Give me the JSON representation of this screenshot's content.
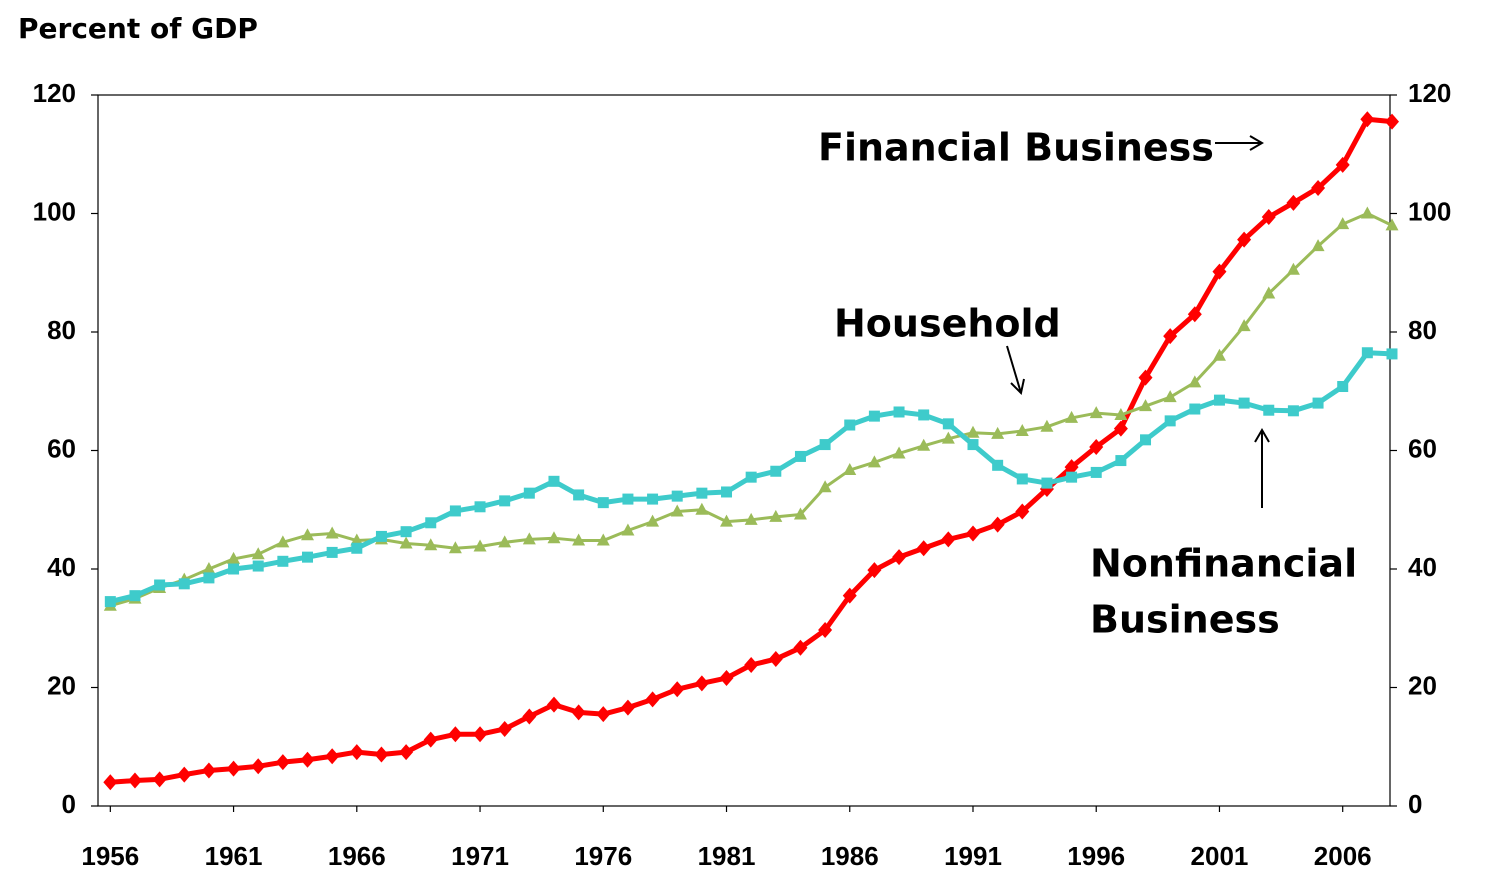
{
  "chart_data": {
    "type": "line",
    "y_axis_label": "Percent of GDP",
    "x": [
      1956,
      1957,
      1958,
      1959,
      1960,
      1961,
      1962,
      1963,
      1964,
      1965,
      1966,
      1967,
      1968,
      1969,
      1970,
      1971,
      1972,
      1973,
      1974,
      1975,
      1976,
      1977,
      1978,
      1979,
      1980,
      1981,
      1982,
      1983,
      1984,
      1985,
      1986,
      1987,
      1988,
      1989,
      1990,
      1991,
      1992,
      1993,
      1994,
      1995,
      1996,
      1997,
      1998,
      1999,
      2000,
      2001,
      2002,
      2003,
      2004,
      2005,
      2006,
      2007,
      2008
    ],
    "xlim": [
      1955.5,
      2008
    ],
    "xticks": [
      1956,
      1961,
      1966,
      1971,
      1976,
      1981,
      1986,
      1991,
      1996,
      2001,
      2006
    ],
    "ylim": [
      0,
      120
    ],
    "yticks": [
      0,
      20,
      40,
      60,
      80,
      100,
      120
    ],
    "y2lim": [
      0,
      120
    ],
    "y2ticks": [
      0,
      20,
      40,
      60,
      80,
      100,
      120
    ],
    "series": [
      {
        "color": "#ff0000",
        "marker": "diamond",
        "values": [
          4,
          4.3,
          4.5,
          5.3,
          6,
          6.3,
          6.7,
          7.4,
          7.8,
          8.4,
          9.1,
          8.7,
          9.1,
          11.2,
          12.1,
          12.1,
          13,
          15.1,
          17.1,
          15.8,
          15.5,
          16.6,
          18,
          19.7,
          20.7,
          21.6,
          23.8,
          24.8,
          26.7,
          29.7,
          35.5,
          39.8,
          42,
          43.5,
          45,
          46,
          47.5,
          49.7,
          53.5,
          57.2,
          60.6,
          63.7,
          72.3,
          79.3,
          83,
          90.2,
          95.6,
          99.4,
          101.8,
          104.3,
          108.2,
          115.9,
          115.5
        ]
      },
      {
        "color": "#9bbb59",
        "marker": "triangle",
        "values": [
          33.8,
          35,
          36.8,
          38.2,
          40,
          41.7,
          42.5,
          44.5,
          45.7,
          46,
          44.8,
          45,
          44.3,
          44,
          43.5,
          43.8,
          44.5,
          45,
          45.2,
          44.8,
          44.8,
          46.5,
          48,
          49.7,
          50,
          48,
          48.3,
          48.8,
          49.2,
          53.8,
          56.7,
          58,
          59.5,
          60.8,
          62,
          63,
          62.8,
          63.3,
          64,
          65.5,
          66.3,
          66,
          67.5,
          69,
          71.5,
          76,
          81,
          86.5,
          90.5,
          94.5,
          98.2,
          100,
          98
        ]
      },
      {
        "color": "#3ecbcb",
        "marker": "square",
        "values": [
          34.5,
          35.5,
          37.3,
          37.5,
          38.5,
          40,
          40.5,
          41.3,
          42,
          42.8,
          43.5,
          45.5,
          46.3,
          47.8,
          49.8,
          50.5,
          51.5,
          52.8,
          54.8,
          52.5,
          51.2,
          51.8,
          51.8,
          52.3,
          52.8,
          53,
          55.5,
          56.5,
          59,
          61,
          64.3,
          65.8,
          66.5,
          66,
          64.5,
          61,
          57.5,
          55.2,
          54.5,
          55.5,
          56.3,
          58.3,
          61.8,
          65,
          67,
          68.5,
          68,
          66.8,
          66.7,
          68,
          70.8,
          76.5,
          76.3
        ]
      }
    ],
    "annotations": [
      "Financial Business",
      "Household",
      "Nonfinancial",
      "Business"
    ]
  }
}
